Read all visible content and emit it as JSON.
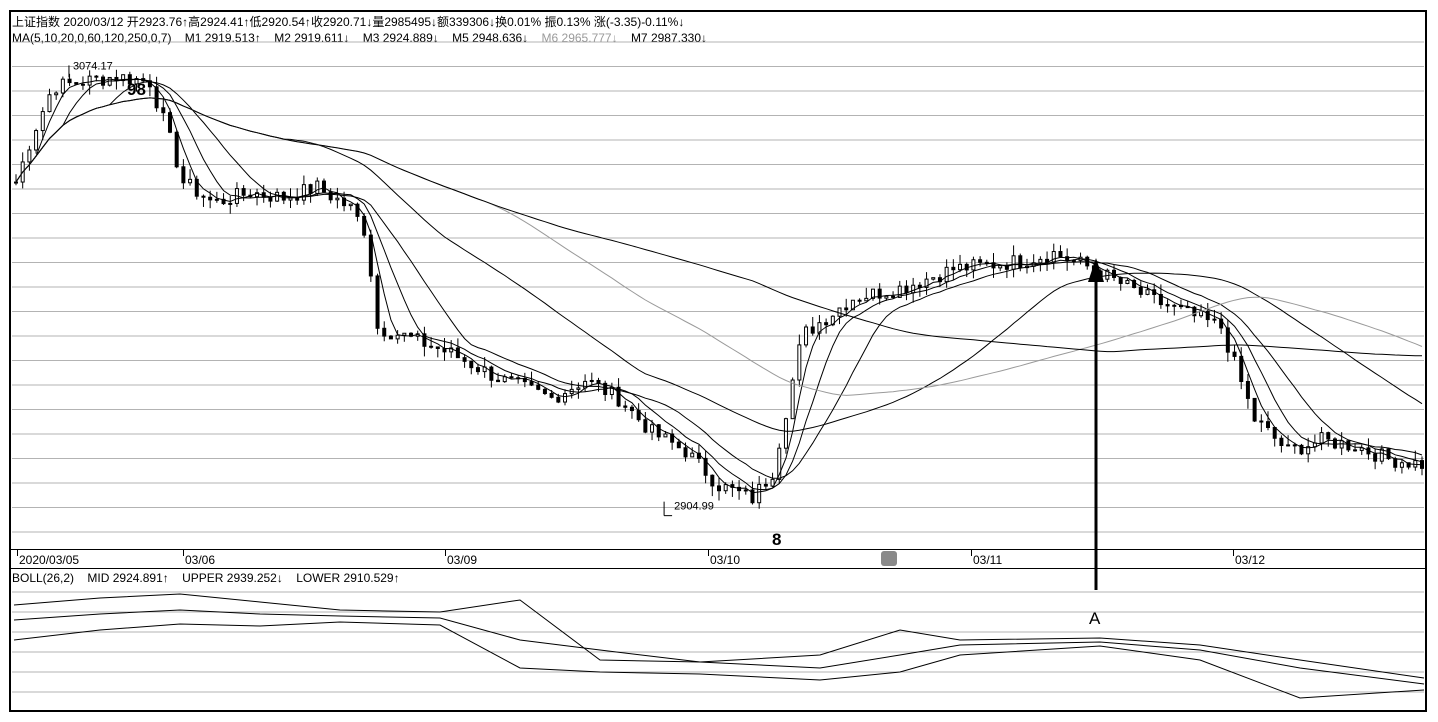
{
  "header": {
    "symbol": "上证指数",
    "date": "2020/03/12",
    "open": "开2923.76↑",
    "high": "高2924.41↑",
    "low": "低2920.54↑",
    "close": "收2920.71↓",
    "volume": "量2985495↓",
    "amount": "额339306↓",
    "turnover": "换0.01%",
    "amplitude": "振0.13%",
    "change": "涨(-3.35)-0.11%↓"
  },
  "ma_line": {
    "params": "MA(5,10,20,0,60,120,250,0,7)",
    "m1": "M1 2919.513↑",
    "m2": "M2 2919.611↓",
    "m3": "M3 2924.889↓",
    "m5": "M5 2948.636↓",
    "m6": "M6 2965.777↓",
    "m7": "M7 2987.330↓"
  },
  "boll_line": {
    "params": "BOLL(26,2)",
    "mid": "MID 2924.891↑",
    "upper": "UPPER 2939.252↓",
    "lower": "LOWER 2910.529↑"
  },
  "colors": {
    "line": "#000000",
    "gridline": "#9a9a9a",
    "faded_ma": "#9a9a9a",
    "background": "#ffffff"
  },
  "chart_data": [
    {
      "type": "candlestick",
      "x": [
        "2020/03/05",
        "03/06",
        "03/09",
        "03/10",
        "03/11",
        "03/12"
      ],
      "price_range": [
        2895,
        3080
      ],
      "high_label": "3074.17",
      "low_label": "2904.99",
      "annotations": {
        "near_high": "98",
        "near_low": "8",
        "arrow_label": "A"
      },
      "ma_periods": [
        5,
        10,
        20,
        60,
        120,
        250,
        7
      ]
    },
    {
      "type": "line",
      "name": "BOLL(26,2)",
      "series": [
        {
          "name": "MID",
          "last": 2924.891
        },
        {
          "name": "UPPER",
          "last": 2939.252
        },
        {
          "name": "LOWER",
          "last": 2910.529
        }
      ]
    }
  ]
}
